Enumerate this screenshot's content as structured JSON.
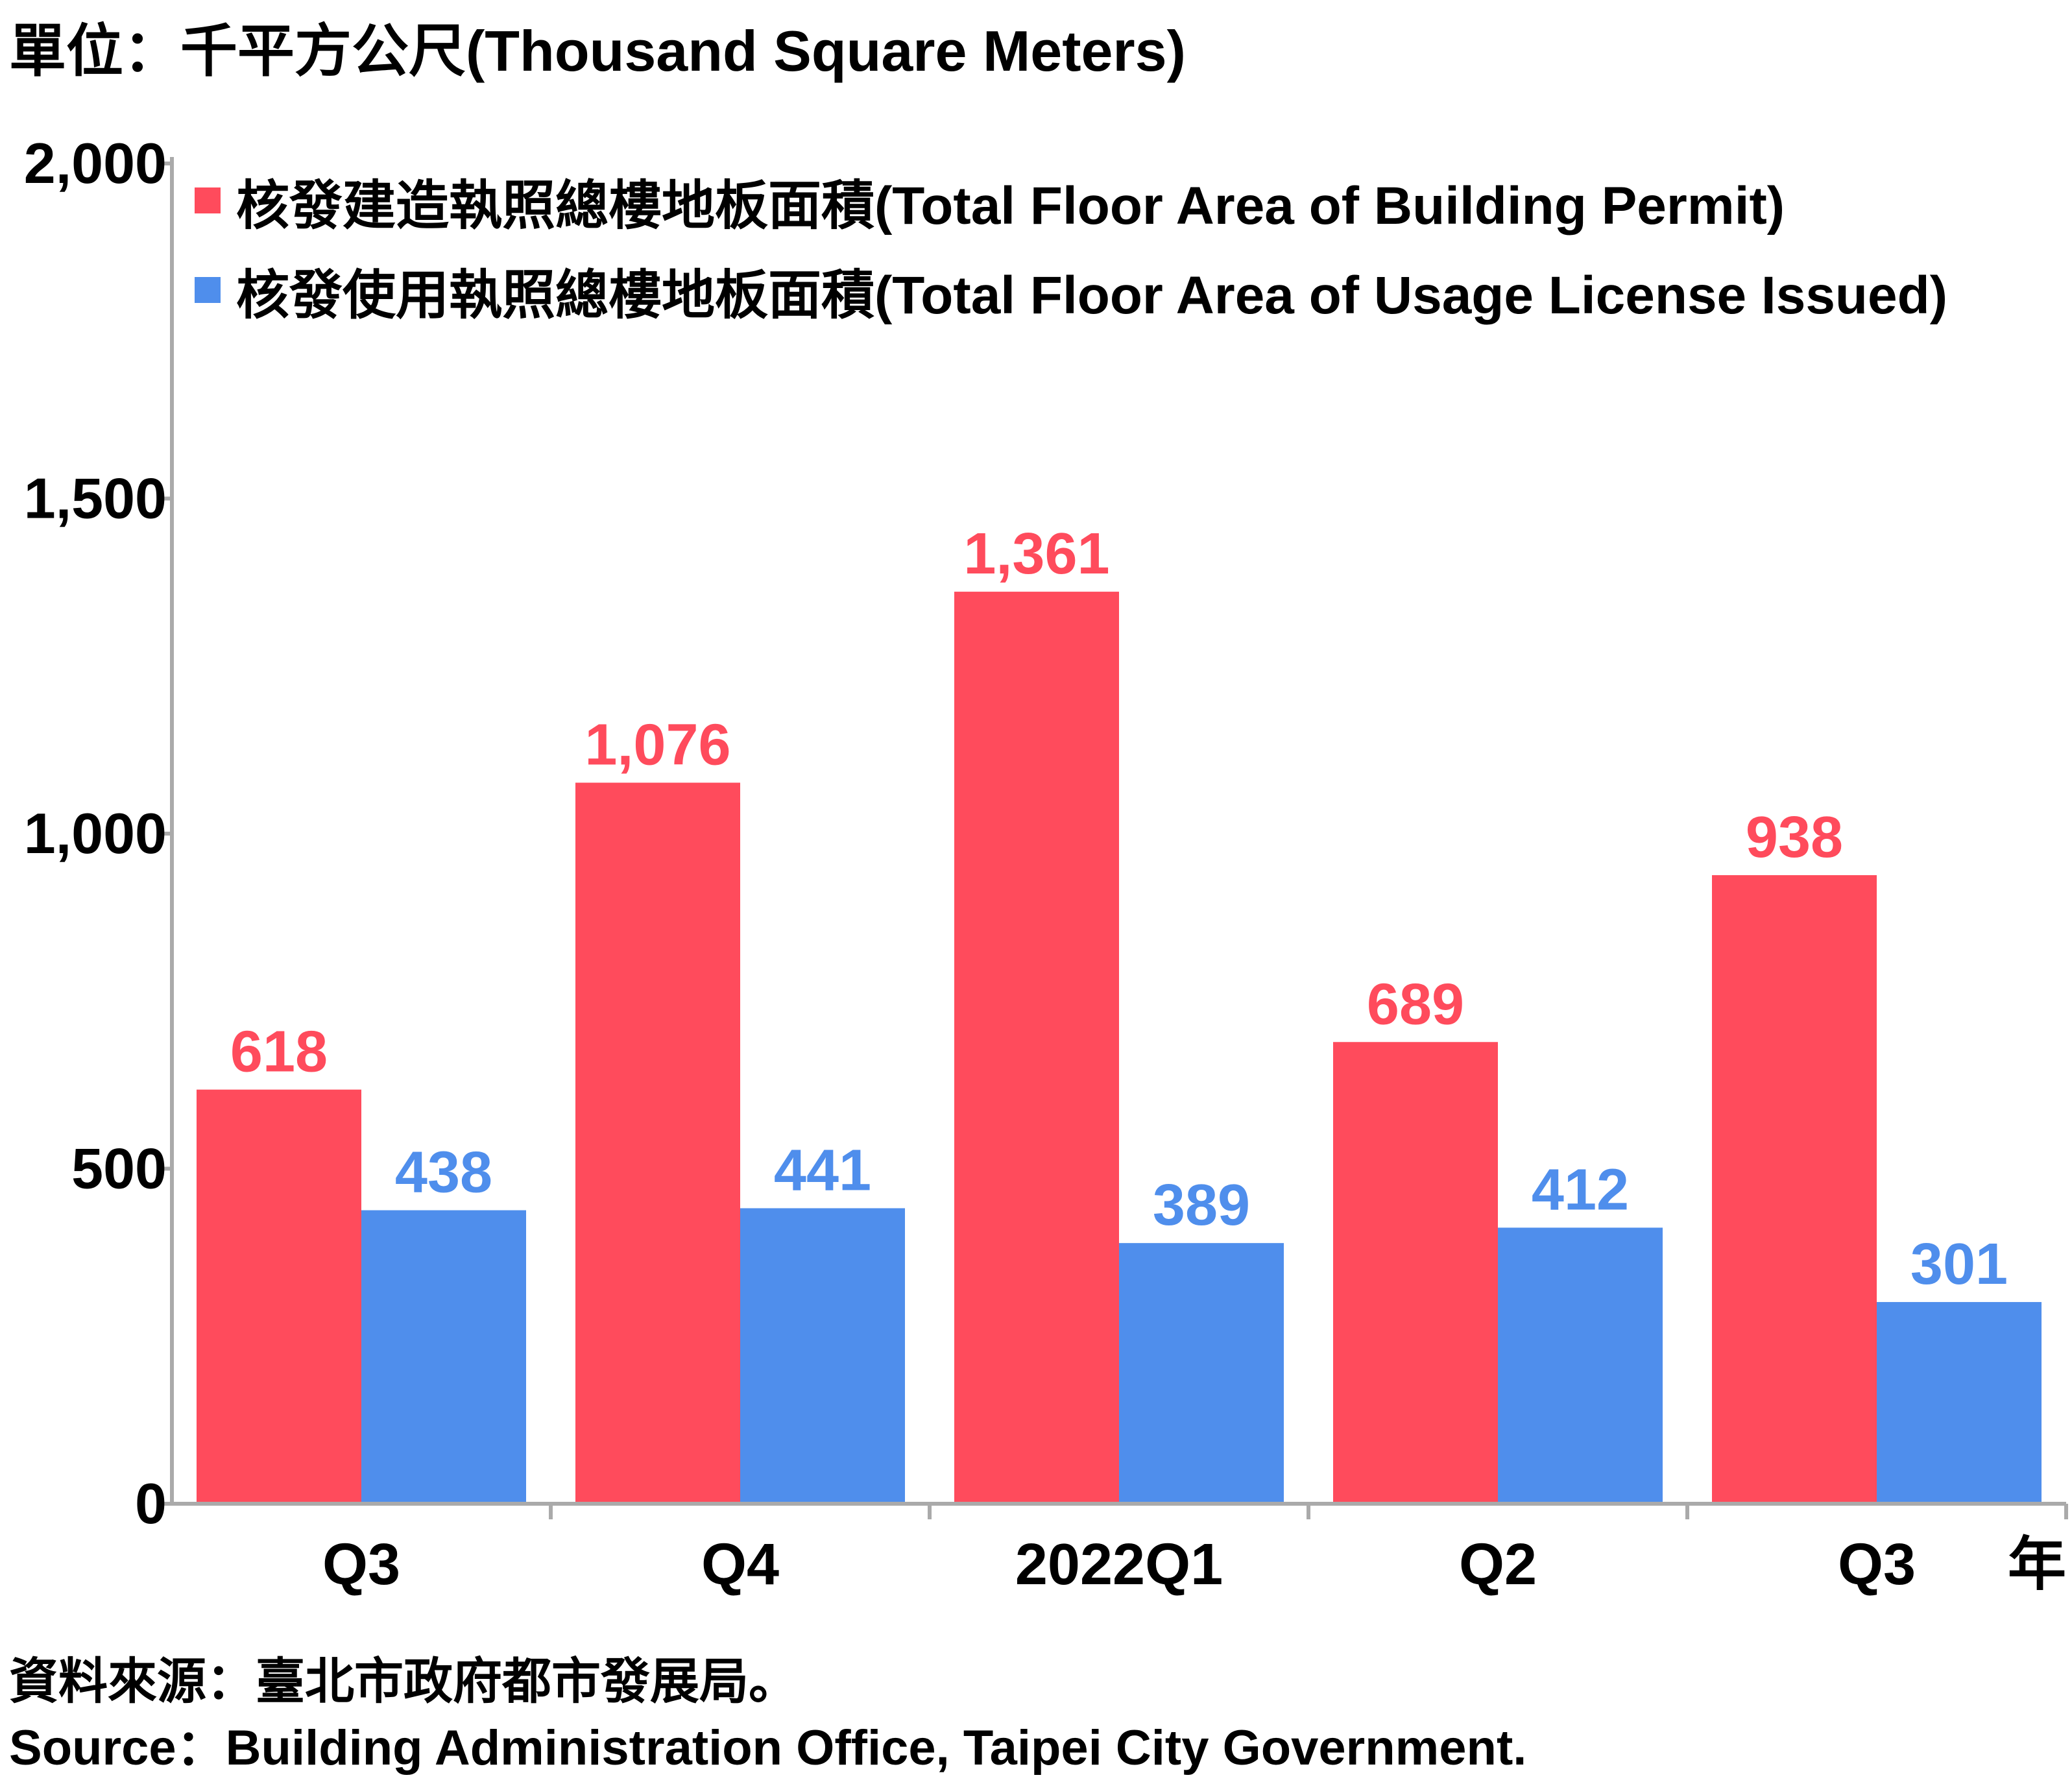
{
  "unit_label": "單位：千平方公尺(Thousand Square Meters)",
  "x_suffix": "年",
  "source_cn": "資料來源：臺北市政府都市發展局。",
  "source_en": "Source：Building Administration Office, Taipei City Government.",
  "colors": {
    "permit": "#FF4B5C",
    "license": "#4F8EEC",
    "axis": "#AAAAAA"
  },
  "chart_data": {
    "type": "bar",
    "categories": [
      "Q3",
      "Q4",
      "2022Q1",
      "Q2",
      "Q3"
    ],
    "series": [
      {
        "name": "核發建造執照總樓地板面積(Total Floor Area of Building Permit)",
        "values": [
          618,
          1076,
          1361,
          689,
          938
        ],
        "labels": [
          "618",
          "1,076",
          "1,361",
          "689",
          "938"
        ]
      },
      {
        "name": "核發使用執照總樓地板面積(Total Floor Area of Usage License Issued)",
        "values": [
          438,
          441,
          389,
          412,
          301
        ],
        "labels": [
          "438",
          "441",
          "389",
          "412",
          "301"
        ]
      }
    ],
    "ylim": [
      0,
      2000
    ],
    "yticks": [
      0,
      500,
      1000,
      1500,
      2000
    ],
    "ytick_labels": [
      "0",
      "500",
      "1,000",
      "1,500",
      "2,000"
    ],
    "legend": "top-left",
    "grid": false
  }
}
